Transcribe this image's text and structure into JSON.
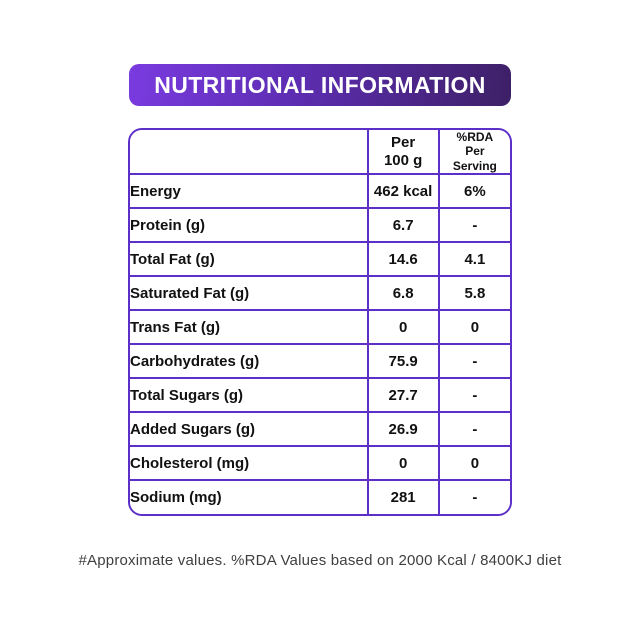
{
  "header": {
    "title": "NUTRITIONAL INFORMATION"
  },
  "table": {
    "columns": {
      "per_100g_lines": [
        "Per",
        "100 g"
      ],
      "rda_lines": [
        "%RDA",
        "Per",
        "Serving"
      ]
    },
    "rows": [
      {
        "label": "Energy",
        "per100": "462 kcal",
        "rda": "6%"
      },
      {
        "label": "Protein (g)",
        "per100": "6.7",
        "rda": "-"
      },
      {
        "label": "Total Fat (g)",
        "per100": "14.6",
        "rda": "4.1"
      },
      {
        "label": "Saturated Fat (g)",
        "per100": "6.8",
        "rda": "5.8"
      },
      {
        "label": "Trans Fat (g)",
        "per100": "0",
        "rda": "0"
      },
      {
        "label": "Carbohydrates (g)",
        "per100": "75.9",
        "rda": "-"
      },
      {
        "label": "Total Sugars (g)",
        "per100": "27.7",
        "rda": "-"
      },
      {
        "label": "Added Sugars (g)",
        "per100": "26.9",
        "rda": "-"
      },
      {
        "label": "Cholesterol (mg)",
        "per100": "0",
        "rda": "0"
      },
      {
        "label": "Sodium (mg)",
        "per100": "281",
        "rda": "-"
      }
    ]
  },
  "footer": {
    "note": "#Approximate values. %RDA Values based on 2000 Kcal / 8400KJ diet"
  },
  "colors": {
    "banner_gradient_start": "#7a3be0",
    "banner_gradient_mid": "#5c2db0",
    "banner_gradient_end": "#3d2066",
    "table_border": "#5d2fc9",
    "table_text": "#111111",
    "note_text": "#3f3f3f",
    "banner_text": "#ffffff",
    "background": "#ffffff"
  }
}
